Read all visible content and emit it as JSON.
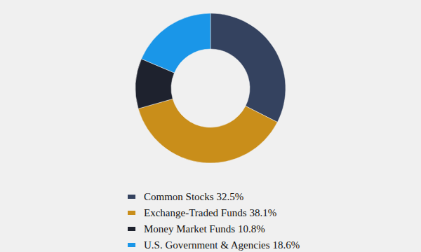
{
  "chart_data": {
    "type": "donut",
    "categories": [
      "Common Stocks",
      "Exchange-Traded Funds",
      "Money Market Funds",
      "U.S. Government & Agencies"
    ],
    "values": [
      32.5,
      38.1,
      10.8,
      18.6
    ],
    "value_labels": [
      "32.5%",
      "38.1%",
      "10.8%",
      "18.6%"
    ],
    "colors": [
      "#34425f",
      "#c98e1a",
      "#1e222e",
      "#1a96e8"
    ],
    "legend": "bottom"
  }
}
